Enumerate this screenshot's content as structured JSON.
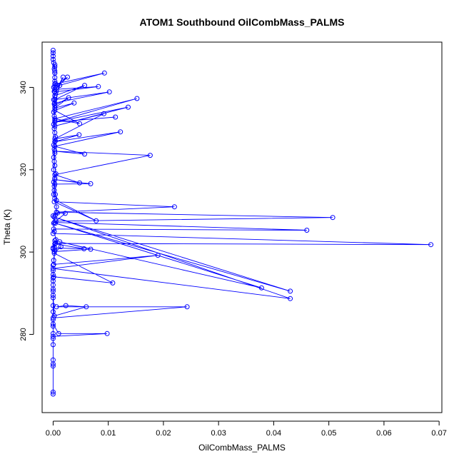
{
  "chart_data": {
    "type": "line",
    "title": "ATOM1 Southbound OilCombMass_PALMS",
    "xlabel": "OilCombMass_PALMS",
    "ylabel": "Theta (K)",
    "xlim": [
      -0.002,
      0.0705
    ],
    "ylim": [
      261,
      351
    ],
    "xticks": [
      0,
      0.01,
      0.02,
      0.03,
      0.04,
      0.05,
      0.06,
      0.07
    ],
    "xtick_labels": [
      "0.00",
      "0.01",
      "0.02",
      "0.03",
      "0.04",
      "0.05",
      "0.06",
      "0.07"
    ],
    "yticks": [
      280,
      300,
      320,
      340
    ],
    "ytick_labels": [
      "280",
      "300",
      "320",
      "340"
    ],
    "grid": false,
    "legend": "none",
    "series_style": {
      "color": "#0000ff",
      "marker": "open-circle",
      "line": "solid"
    },
    "series": [
      {
        "x": [
          0,
          0,
          0,
          0,
          0,
          0,
          0,
          0,
          0,
          0,
          0,
          0,
          0,
          0,
          0,
          0,
          0,
          0,
          0,
          0.0098,
          0.001,
          0,
          0,
          0.0243,
          0.0006,
          0.0023,
          0.006,
          0.0002,
          0,
          0,
          0,
          0,
          0.0001,
          0.0108,
          0.0002,
          0.0014,
          0.0012,
          0.0378,
          0.0004,
          0.043,
          0.0002,
          0.043,
          0,
          0.019,
          0.0001,
          0.0003,
          0,
          0.0003,
          0.0068,
          0.0002,
          0.0003,
          0.0056,
          0,
          0.0004,
          0.0685,
          0,
          0.0001,
          0.046,
          0.0002,
          0,
          0.0008,
          0.0022,
          0.0005,
          0.0507,
          0.0006,
          0.022,
          0.0002,
          0.0078,
          0.0006,
          0.0004,
          0.0003,
          0.0068,
          0.0003,
          0.0048,
          0.0003,
          0.0176,
          0.0003,
          0.0057,
          0.0003,
          0.0122,
          0.0003,
          0.0047,
          0.0003,
          0.0092,
          0.0003,
          0.0136,
          0.0003,
          0.0113,
          0.0003,
          0.0152,
          0.0003,
          0.0048,
          0.0003,
          0.0038,
          0.0003,
          0.0028,
          0.0003,
          0.0012,
          0.0003,
          0.0102,
          0.0003,
          0.0057,
          0.0003,
          0.0018,
          0.0003,
          0.0082,
          0.0003,
          0.0026,
          0.0003,
          0.0093,
          0.0003,
          0.0003,
          0.0003,
          0.0003,
          0.0003,
          0.0003,
          0.0003,
          0.0003,
          0.0002,
          0.0001,
          0,
          0,
          0,
          0
        ],
        "y": [
          265.5,
          266,
          272.3,
          272.8,
          273.8,
          277.5,
          279,
          280.2,
          282,
          283.6,
          285.5,
          287,
          288.9,
          290.5,
          292,
          293.7,
          295.5,
          296.8,
          279.5,
          280.2,
          280.2,
          282.5,
          284,
          286.7,
          286.7,
          287,
          286.7,
          284.5,
          289.5,
          291,
          293,
          294.5,
          294,
          292.5,
          299.7,
          301.3,
          302.5,
          291.3,
          307,
          290.5,
          308.5,
          288.7,
          296,
          299.2,
          297,
          300.5,
          300.8,
          302.8,
          300.7,
          300.1,
          302,
          300.8,
          301,
          302.1,
          301.8,
          304.5,
          305.6,
          305.3,
          307.2,
          308.8,
          309.5,
          309.4,
          307.5,
          308.4,
          309.7,
          311,
          312.2,
          307.6,
          312.5,
          314,
          316.5,
          316.6,
          317.6,
          316.8,
          318.8,
          323.5,
          324.5,
          323.8,
          325.7,
          329.2,
          326.8,
          328.5,
          327.5,
          333.6,
          330.6,
          335.2,
          331.6,
          332.8,
          331.6,
          337.3,
          332.4,
          331.2,
          334.4,
          336.2,
          335,
          337.5,
          335.6,
          340.5,
          336.2,
          338.9,
          337,
          340.5,
          338,
          342.5,
          338.9,
          340.2,
          339.5,
          342.5,
          340.2,
          343.5,
          340.8,
          343.5,
          341.5,
          344,
          342.4,
          345,
          343.5,
          345.5,
          344.5,
          346,
          346.8,
          347.6,
          348.4,
          349
        ]
      },
      {
        "x": [
          0.0001,
          0.0003,
          0.0005,
          0.0002,
          0.0001,
          0.0004,
          0.0006,
          0.0003,
          0.0002,
          0.0001,
          0.0005,
          0.0003,
          0.0001,
          0.0002,
          0.0004,
          0.0003,
          0.0001,
          0.0002,
          0.0003,
          0.0001,
          0.0002,
          0.0004,
          0.0001,
          0.0003,
          0.0002,
          0.0001,
          0.0003,
          0.0002,
          0.0004,
          0.0001,
          0.0003,
          0.0002,
          0.0001,
          0.0003,
          0.0002,
          0.0001
        ],
        "y": [
          298,
          301,
          303,
          305,
          307,
          309,
          311,
          313,
          315,
          317,
          319,
          321,
          323,
          325,
          327,
          329,
          331,
          333,
          335,
          337,
          339,
          341,
          340,
          338,
          336,
          334,
          332,
          330,
          328,
          326,
          324,
          322,
          320,
          318,
          316,
          314
        ]
      }
    ]
  }
}
